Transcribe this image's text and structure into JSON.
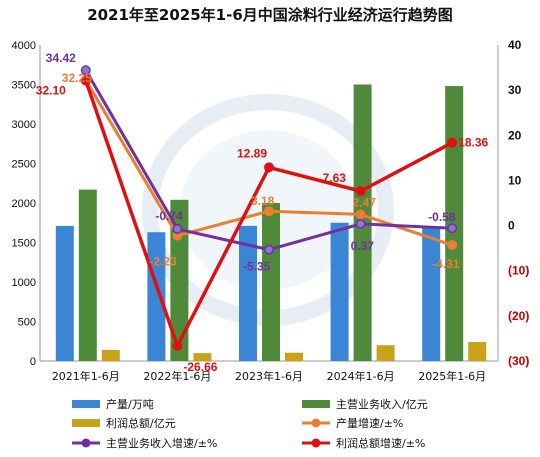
{
  "chart_data": {
    "type": "bar",
    "title": "2021年至2025年1-6月中国涂料行业经济运行趋势图",
    "categories": [
      "2021年1-6月",
      "2022年1-6月",
      "2023年1-6月",
      "2024年1-6月",
      "2025年1-6月"
    ],
    "left_axis": {
      "ylim": [
        0,
        4000
      ],
      "ticks": [
        "0",
        "500",
        "1000",
        "1500",
        "2000",
        "2500",
        "3000",
        "3500",
        "4000"
      ]
    },
    "right_axis": {
      "ylim": [
        -30,
        40
      ],
      "ticks": [
        "(30)",
        "(20)",
        "(10)",
        "0",
        "10",
        "20",
        "30",
        "40"
      ]
    },
    "bar_series": [
      {
        "name": "产量/万吨",
        "color": "#3a86d4",
        "values": [
          1710,
          1630,
          1710,
          1750,
          1700
        ]
      },
      {
        "name": "主营业务收入/亿元",
        "color": "#4f8a3a",
        "values": [
          2170,
          2040,
          2000,
          3500,
          3480
        ]
      },
      {
        "name": "利润总额/亿元",
        "color": "#c9a21a",
        "values": [
          140,
          100,
          105,
          200,
          240
        ]
      }
    ],
    "line_series": [
      {
        "name": "产量增速/±%",
        "color": "#ed7d31",
        "values": [
          32.25,
          -2.23,
          3.18,
          2.47,
          -4.31
        ],
        "labels": [
          "32.25",
          "-2.23",
          "3.18",
          "2.47",
          "-4.31"
        ]
      },
      {
        "name": "主营业务收入增速/±%",
        "color": "#7030a0",
        "values": [
          34.42,
          -0.74,
          -5.35,
          0.37,
          -0.58
        ],
        "labels": [
          "34.42",
          "-0.74",
          "-5.35",
          "0.37",
          "-0.58"
        ]
      },
      {
        "name": "利润总额增速/±%",
        "color": "#e01010",
        "values": [
          32.1,
          -26.66,
          12.89,
          7.63,
          18.36
        ],
        "labels": [
          "32.10",
          "-26.66",
          "12.89",
          "7.63",
          "18.36"
        ]
      }
    ],
    "right_tick_colors": {
      "positive": "#111111",
      "negative": "#c00000"
    },
    "grid": false,
    "legend": "bottom"
  }
}
